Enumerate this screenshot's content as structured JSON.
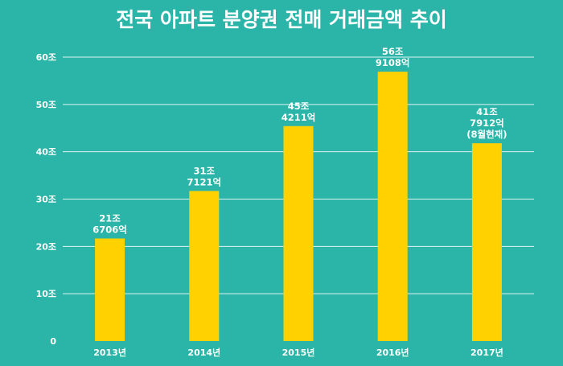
{
  "chart_data": {
    "type": "bar",
    "title": "전국 아파트 분양권 전매 거래금액 추이",
    "xlabel": "",
    "ylabel": "",
    "categories": [
      "2013년",
      "2014년",
      "2015년",
      "2016년",
      "2017년"
    ],
    "values": [
      21.6706,
      31.7121,
      45.4211,
      56.9108,
      41.7912
    ],
    "data_labels": [
      [
        "21조",
        "6706억"
      ],
      [
        "31조",
        "7121억"
      ],
      [
        "45조",
        "4211억"
      ],
      [
        "56조",
        "9108억"
      ],
      [
        "41조",
        "7912억",
        "(8월현재)"
      ]
    ],
    "yticks": [
      {
        "value": 0,
        "label": "0"
      },
      {
        "value": 10,
        "label": "10조"
      },
      {
        "value": 20,
        "label": "20조"
      },
      {
        "value": 30,
        "label": "30조"
      },
      {
        "value": 40,
        "label": "40조"
      },
      {
        "value": 50,
        "label": "50조"
      },
      {
        "value": 60,
        "label": "60조"
      }
    ],
    "ylim": [
      0,
      60
    ],
    "grid": true,
    "legend": "none",
    "colors": {
      "background": "#2bb5a8",
      "bar": "#ffd100",
      "text": "#ffffff",
      "grid": "#ffffff"
    }
  }
}
